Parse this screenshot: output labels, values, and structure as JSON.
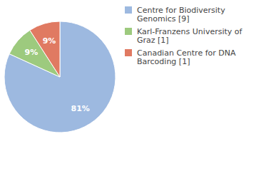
{
  "chart_data": {
    "type": "pie",
    "categories": [
      "Centre for Biodiversity Genomics [9]",
      "Karl-Franzens University of Graz [1]",
      "Canadian Centre for DNA Barcoding [1]"
    ],
    "values": [
      81,
      9,
      9
    ],
    "value_labels": [
      "81%",
      "9%",
      "9%"
    ],
    "colors": [
      "#9db9e0",
      "#9dca7e",
      "#e07a62"
    ],
    "data_labels": true,
    "legend": "right"
  }
}
